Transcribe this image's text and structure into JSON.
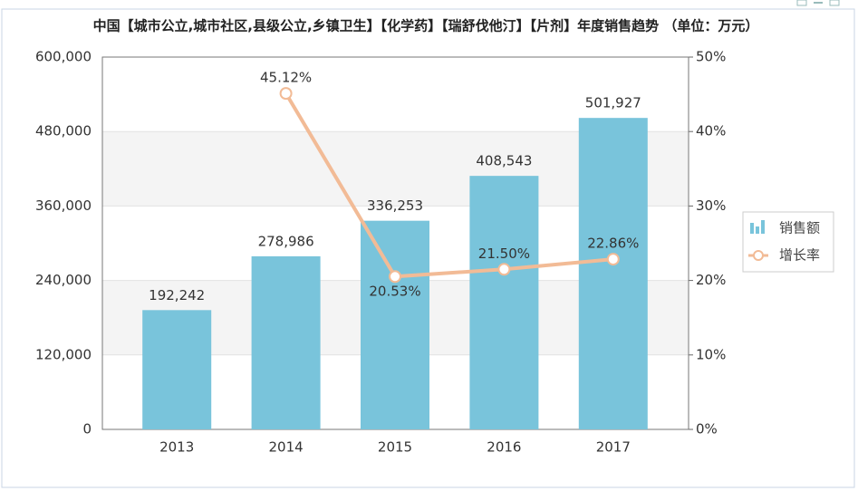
{
  "chart_data": {
    "type": "bar-line",
    "title": "中国【城市公立,城市社区,县级公立,乡镇卫生】【化学药】【瑞舒伐他汀】【片剂】年度销售趋势 （单位：万元）",
    "categories": [
      "2013",
      "2014",
      "2015",
      "2016",
      "2017"
    ],
    "series": [
      {
        "name": "销售额",
        "type": "bar",
        "color": "#79c4db",
        "values": [
          192242,
          278986,
          336253,
          408543,
          501927
        ],
        "value_labels": [
          "192,242",
          "278,986",
          "336,253",
          "408,543",
          "501,927"
        ]
      },
      {
        "name": "增长率",
        "type": "line",
        "axis": "y2",
        "color": "#f2bb96",
        "values": [
          null,
          45.12,
          20.53,
          21.5,
          22.86
        ],
        "value_labels": [
          null,
          "45.12%",
          "20.53%",
          "21.50%",
          "22.86%"
        ]
      }
    ],
    "ylim": [
      0,
      600000
    ],
    "yticks": [
      0,
      {
        "value": 120000,
        "label": "120,000"
      },
      {
        "value": 240000,
        "label": "240,000"
      },
      {
        "value": 360000,
        "label": "360,000"
      },
      {
        "value": 480000,
        "label": "480,000"
      },
      {
        "value": 600000,
        "label": "600,000"
      }
    ],
    "y2lim": [
      0,
      50
    ],
    "y2ticks": [
      {
        "value": 0,
        "label": "0%"
      },
      {
        "value": 10,
        "label": "10%"
      },
      {
        "value": 20,
        "label": "20%"
      },
      {
        "value": 30,
        "label": "30%"
      },
      {
        "value": 40,
        "label": "40%"
      },
      {
        "value": 50,
        "label": "50%"
      }
    ],
    "grid": true,
    "legend": "right"
  }
}
